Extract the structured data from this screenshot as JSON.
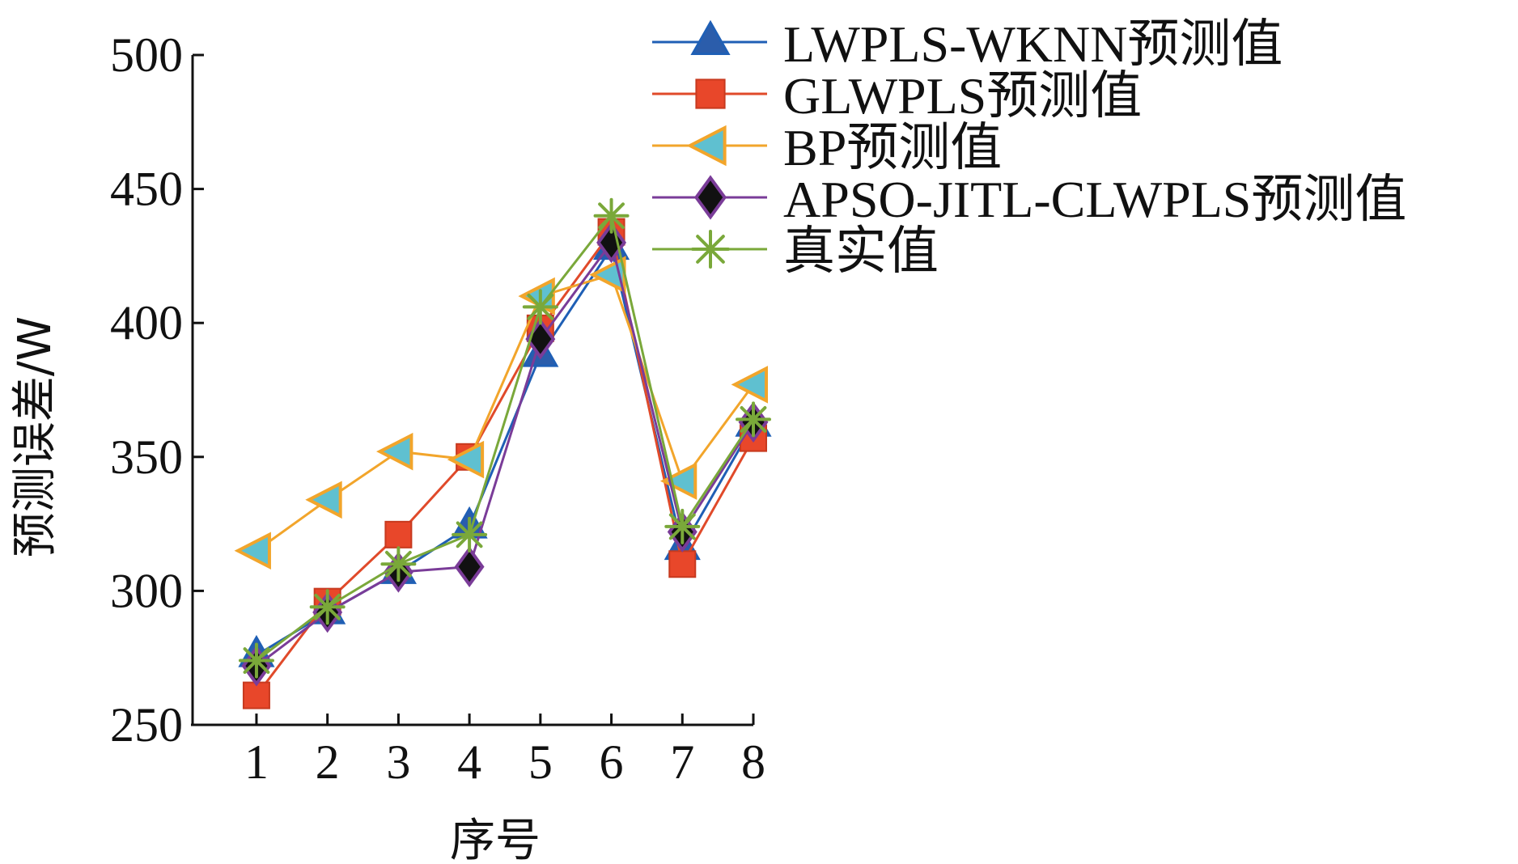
{
  "chart_data": {
    "type": "line",
    "title": "",
    "xlabel": "序号",
    "ylabel": "预测误差/W",
    "x": [
      1,
      2,
      3,
      4,
      5,
      6,
      7,
      8
    ],
    "xticks": [
      "1",
      "2",
      "3",
      "4",
      "5",
      "6",
      "7",
      "8"
    ],
    "yticks": [
      "250",
      "300",
      "350",
      "400",
      "450",
      "500"
    ],
    "ylim": [
      250,
      500
    ],
    "xlim": [
      0.1,
      8
    ],
    "grid": false,
    "legend_position": "top-right",
    "series": [
      {
        "name": "LWPLS-WKNN预测值",
        "marker": "triangle-up",
        "color": "#1f5fb5",
        "fill": "#2b5dab",
        "values": [
          276,
          292,
          307,
          324,
          388,
          428,
          316,
          362
        ]
      },
      {
        "name": "GLWPLS预测值",
        "marker": "square",
        "color": "#e04a2a",
        "fill": "#e8472a",
        "values": [
          261,
          296,
          321,
          350,
          398,
          434,
          310,
          357
        ]
      },
      {
        "name": "BP预测值",
        "marker": "triangle-left",
        "color": "#f2a52b",
        "fill": "#5fc0d0",
        "values": [
          315,
          334,
          352,
          349,
          410,
          418,
          341,
          377
        ]
      },
      {
        "name": "APSO-JITL-CLWPLS预测值",
        "marker": "diamond",
        "color": "#7a3c98",
        "fill": "#111111",
        "values": [
          272,
          292,
          307,
          309,
          394,
          430,
          322,
          363
        ]
      },
      {
        "name": "真实值",
        "marker": "asterisk",
        "color": "#7aa83a",
        "fill": "#7aa83a",
        "values": [
          274,
          294,
          310,
          321,
          406,
          440,
          324,
          364
        ]
      }
    ]
  }
}
